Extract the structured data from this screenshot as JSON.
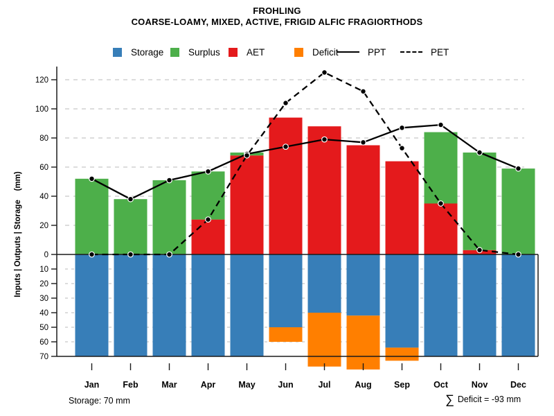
{
  "title": "FROHLING",
  "subtitle": "COARSE-LOAMY, MIXED, ACTIVE, FRIGID ALFIC FRAGIORTHODS",
  "footer": {
    "storage": "Storage: 70 mm",
    "sigma": "∑",
    "deficit": "Deficit = -93 mm"
  },
  "colors": {
    "storage": "#377EB8",
    "surplus": "#4DAF4A",
    "aet": "#E41A1C",
    "deficit": "#FF7F00",
    "line": "#000000",
    "grid": "#C6C6C6",
    "axis": "#1A1A1A"
  },
  "chart_data": {
    "type": "bar+line",
    "title": "FROHLING",
    "subtitle": "COARSE-LOAMY, MIXED, ACTIVE, FRIGID ALFIC FRAGIORTHODS",
    "categories": [
      "Jan",
      "Feb",
      "Mar",
      "Apr",
      "May",
      "Jun",
      "Jul",
      "Aug",
      "Sep",
      "Oct",
      "Nov",
      "Dec"
    ],
    "series": [
      {
        "name": "Storage",
        "type": "bar",
        "axis": "lower",
        "color_key": "storage",
        "values": [
          70,
          70,
          70,
          70,
          70,
          50,
          40,
          42,
          64,
          70,
          70,
          70
        ]
      },
      {
        "name": "Surplus",
        "type": "bar",
        "axis": "upper",
        "stacked_on": "AET",
        "color_key": "surplus",
        "values": [
          52,
          38,
          51,
          33,
          2,
          0,
          0,
          0,
          0,
          49,
          67,
          59
        ]
      },
      {
        "name": "AET",
        "type": "bar",
        "axis": "upper",
        "color_key": "aet",
        "values": [
          0,
          0,
          0,
          24,
          68,
          94,
          88,
          75,
          64,
          35,
          3,
          0
        ]
      },
      {
        "name": "Deficit",
        "type": "bar",
        "axis": "lower",
        "stacked_on": "Storage",
        "color_key": "deficit",
        "values": [
          0,
          0,
          0,
          0,
          0,
          10,
          37,
          37,
          9,
          0,
          0,
          0
        ]
      },
      {
        "name": "PPT",
        "type": "line",
        "style": "solid",
        "values": [
          52,
          38,
          51,
          57,
          69,
          74,
          79,
          77,
          87,
          89,
          70,
          59
        ]
      },
      {
        "name": "PET",
        "type": "line",
        "style": "dashed",
        "values": [
          0,
          0,
          0,
          24,
          68,
          104,
          125,
          112,
          73,
          35,
          3,
          0
        ]
      }
    ],
    "ylabel": "Inputs | Outputs | Storage    (mm)",
    "upper_ticks": [
      0,
      20,
      40,
      60,
      80,
      100,
      120
    ],
    "lower_ticks": [
      10,
      20,
      30,
      40,
      50,
      60,
      70
    ],
    "upper_axis_max": 130,
    "lower_axis_max": 70,
    "grid": "dashed",
    "legend_position": "top",
    "annotations": [
      "Storage: 70 mm",
      "∑ Deficit = -93 mm"
    ]
  }
}
